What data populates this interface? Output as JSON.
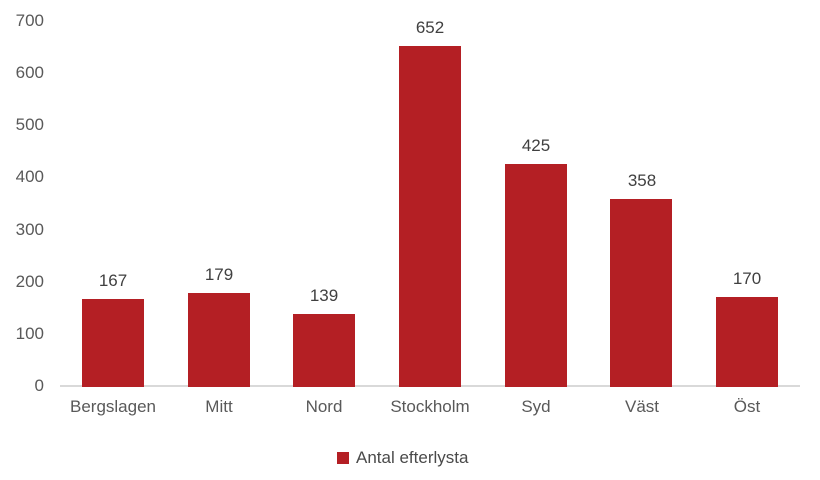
{
  "chart_data": {
    "type": "bar",
    "title": "",
    "categories": [
      "Bergslagen",
      "Mitt",
      "Nord",
      "Stockholm",
      "Syd",
      "Väst",
      "Öst"
    ],
    "values": [
      167,
      179,
      139,
      652,
      425,
      358,
      170
    ],
    "value_labels": [
      "167",
      "179",
      "139",
      "652",
      "425",
      "358",
      "170"
    ],
    "series_name": "Antal efterlysta",
    "xlabel": "",
    "ylabel": "",
    "ylim": [
      0,
      700
    ],
    "y_ticks": [
      0,
      100,
      200,
      300,
      400,
      500,
      600,
      700
    ],
    "grid": false,
    "legend_position": "bottom",
    "bar_color": "#B41F24"
  },
  "legend": {
    "label": "Antal efterlysta"
  },
  "colors": {
    "bar": "#B41F24",
    "axis_line": "#D9D9D9",
    "tick_text": "#595959",
    "value_text": "#404040",
    "legend_text": "#4A4A4A",
    "background": "#FFFFFF"
  }
}
